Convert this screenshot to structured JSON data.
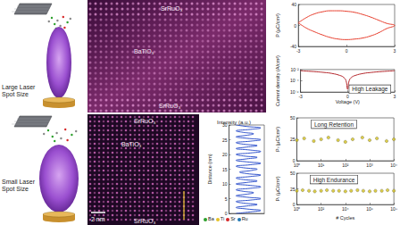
{
  "deposition": [
    {
      "label": "Large Laser Spot Size"
    },
    {
      "label": "Small Laser Spot Size"
    }
  ],
  "stem_images": [
    {
      "layers": [
        "SrRuO₃",
        "BaTiO₃",
        "SrRuO₃"
      ]
    },
    {
      "layers": [
        "SrRuO₃",
        "BaTiO₃",
        "SrRuO₃"
      ],
      "scale_bar": "2 nm"
    }
  ],
  "chart_data": [
    {
      "type": "line",
      "ylabel": "P (µC/cm²)",
      "color": "#e8402f",
      "x": [
        -3,
        -2.5,
        -2,
        -1.5,
        -1,
        -0.5,
        0,
        0.5,
        1,
        1.5,
        2,
        2.5,
        3,
        2.5,
        2,
        1.5,
        1,
        0.5,
        0,
        -0.5,
        -1,
        -1.5,
        -2,
        -2.5,
        -3
      ],
      "values": [
        5,
        15,
        22,
        26,
        28,
        28,
        27,
        25,
        21,
        16,
        10,
        4,
        0,
        -6,
        -14,
        -20,
        -24,
        -26,
        -27,
        -26,
        -23,
        -18,
        -12,
        -5,
        5
      ],
      "xlim": [
        -3,
        3
      ],
      "xticks": [
        -3,
        0,
        3
      ],
      "ylim": [
        -40,
        40
      ],
      "yticks": [
        -40,
        0,
        40
      ]
    },
    {
      "type": "line",
      "annotation": "High Leakage",
      "xlabel": "Voltage (V)",
      "ylabel": "Current density (A/cm²)",
      "log": "y",
      "color": "#b3262b",
      "x": [
        -3,
        -2.5,
        -2,
        -1.5,
        -1,
        -0.5,
        -0.25,
        -0.1,
        0,
        0.1,
        0.25,
        0.5,
        1,
        1.5,
        2,
        2.5,
        3
      ],
      "values": [
        0.006,
        0.005,
        0.004,
        0.003,
        0.002,
        0.0009,
        0.0004,
        0.0001,
        3e-06,
        0.0001,
        0.0004,
        0.0009,
        0.002,
        0.003,
        0.004,
        0.005,
        0.006
      ],
      "xlim": [
        -3,
        3
      ],
      "xticks": [
        -3,
        0,
        3
      ],
      "ylim": [
        1e-06,
        0.01
      ],
      "yticks": [
        {
          "value": 1e-06,
          "label": "10⁻⁶"
        },
        {
          "value": 0.0001,
          "label": "10⁻⁴"
        },
        {
          "value": 0.01,
          "label": "10⁻²"
        }
      ]
    },
    {
      "type": "line",
      "title": "Intensity (a.u.)",
      "ylabel": "Distance (nm)",
      "color": "#3355cc",
      "tick_labels": "y",
      "y": [
        0,
        0.5,
        1,
        1.5,
        2,
        2.5,
        3,
        3.5,
        4,
        4.5,
        5,
        5.5,
        6,
        6.5,
        7,
        7.5,
        8,
        8.5,
        9,
        9.5,
        10,
        10.5,
        11,
        11.5,
        12,
        12.5,
        13,
        13.5,
        14,
        14.5,
        15,
        15.5,
        16,
        16.5,
        17,
        17.5,
        18,
        18.5,
        19,
        19.5,
        20,
        20.5,
        21,
        21.5,
        22,
        22.5,
        23,
        23.5,
        24,
        24.5,
        25,
        25.5,
        26,
        26.5,
        27,
        27.5,
        28,
        28.5,
        29,
        29.5,
        30
      ],
      "values": [
        2,
        6,
        9,
        5,
        2,
        5,
        8,
        4,
        2,
        6,
        9,
        5,
        2,
        5,
        7,
        4,
        2,
        6,
        9,
        6,
        2,
        5,
        8,
        4,
        2,
        6,
        9,
        5,
        3,
        6,
        8,
        4,
        2,
        6,
        9,
        5,
        2,
        5,
        8,
        4,
        2,
        6,
        9,
        6,
        2,
        5,
        8,
        4,
        2,
        6,
        9,
        5,
        2,
        5,
        7,
        4,
        2,
        6,
        9,
        5,
        2
      ],
      "xlim": [
        0,
        10
      ],
      "ylim": [
        0,
        30
      ],
      "yticks": [
        0,
        5,
        10,
        15,
        20,
        25,
        30
      ],
      "atoms": [
        {
          "name": "Ba",
          "color": "#2ca02c"
        },
        {
          "name": "Ti",
          "color": "#e6c229"
        },
        {
          "name": "Sr",
          "color": "#d62728"
        },
        {
          "name": "Ru",
          "color": "#1f77b4"
        }
      ]
    },
    {
      "type": "scatter",
      "annotation": "Long Retention",
      "ylabel": "Pᵣ (µC/cm²)",
      "log": "x",
      "color": "#d4c21a",
      "marker": "circle",
      "x": [
        1,
        2,
        5,
        10,
        20,
        50,
        100,
        200,
        500,
        1000,
        2000,
        5000,
        10000
      ],
      "values": [
        24,
        26,
        23,
        25,
        27,
        24,
        22,
        25,
        27,
        24,
        26,
        23,
        25
      ],
      "xlim": [
        1,
        10000
      ],
      "xticks": [
        {
          "value": 1,
          "label": "10⁰"
        },
        {
          "value": 10,
          "label": "10¹"
        },
        {
          "value": 100,
          "label": "10²"
        },
        {
          "value": 1000,
          "label": "10³"
        },
        {
          "value": 10000,
          "label": "10⁴"
        }
      ],
      "ylim": [
        0,
        50
      ],
      "yticks": [
        0,
        25,
        50
      ]
    },
    {
      "type": "scatter",
      "annotation": "High Endurance",
      "xlabel": "# Cycles",
      "ylabel": "Pᵣ (µC/cm²)",
      "log": "x",
      "color": "#d4c21a",
      "marker": "circle",
      "x": [
        1,
        3,
        10,
        30,
        100,
        300,
        1000,
        3000,
        10000,
        30000,
        100000,
        300000,
        1000000,
        3000000,
        10000000,
        30000000,
        100000000
      ],
      "values": [
        22,
        23,
        22,
        21,
        22,
        23,
        22,
        22,
        21,
        22,
        23,
        22,
        21,
        22,
        22,
        23,
        22
      ],
      "xlim": [
        1,
        100000000
      ],
      "xticks": [
        {
          "value": 1,
          "label": "10⁰"
        },
        {
          "value": 100,
          "label": "10²"
        },
        {
          "value": 10000,
          "label": "10⁴"
        },
        {
          "value": 1000000,
          "label": "10⁶"
        },
        {
          "value": 100000000,
          "label": "10⁸"
        }
      ],
      "ylim": [
        0,
        50
      ],
      "yticks": [
        0,
        25,
        50
      ]
    }
  ]
}
